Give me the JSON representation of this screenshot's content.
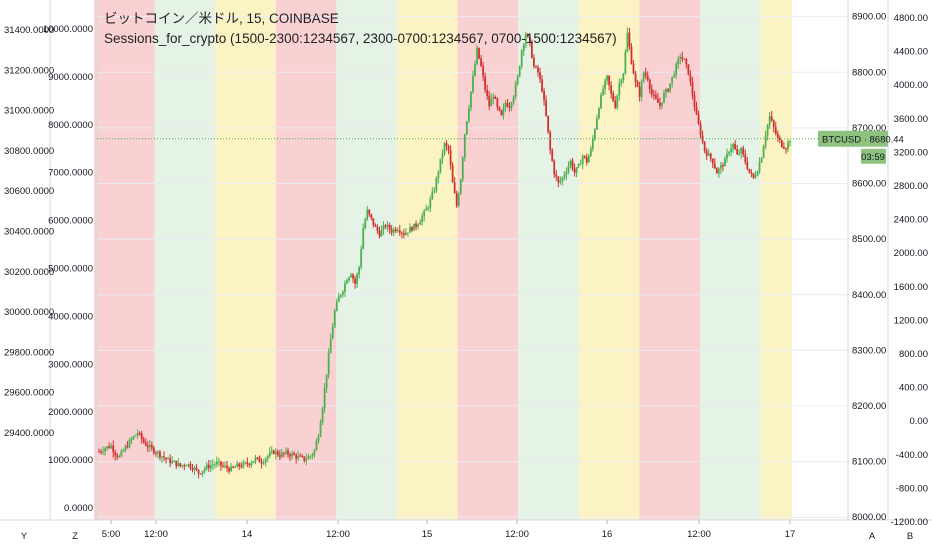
{
  "header": {
    "symbol_line": "ビットコイン／米ドル, 15, COINBASE",
    "indicator_line": "Sessions_for_crypto (1500-2300:1234567, 2300-0700:1234567, 0700-1500:1234567)"
  },
  "colors": {
    "session_red": "#f9d1d3",
    "session_green": "#e5f2e6",
    "session_yellow": "#fbf3c4",
    "candle_up": "#4caf50",
    "candle_down": "#d32f2f",
    "price_line": "#4caf50",
    "price_label_bg": "#8fc27f"
  },
  "chart_data": {
    "type": "candlestick",
    "symbol": "BTCUSD",
    "interval": "15",
    "exchange": "COINBASE",
    "last_price": "8680.44",
    "countdown": "03:59",
    "sessions": [
      "1500-2300:1234567",
      "2300-0700:1234567",
      "0700-1500:1234567"
    ],
    "session_band_colors": [
      "red",
      "green",
      "yellow",
      "red",
      "green",
      "yellow",
      "red",
      "green",
      "yellow",
      "red",
      "green",
      "yellow",
      "red",
      "green",
      "yellow",
      "red",
      "green",
      "yellow"
    ],
    "price_axis_right": {
      "range": [
        7995,
        8930
      ],
      "ticks": [
        "8900.00",
        "8800.00",
        "8700.00",
        "8600.00",
        "8500.00",
        "8400.00",
        "8300.00",
        "8200.00",
        "8100.00",
        "8000.00"
      ]
    },
    "axis_left_outer": {
      "range": [
        29280,
        31420
      ],
      "ticks": [
        "31400.0000",
        "31200.0000",
        "31000.0000",
        "30800.0000",
        "30600.0000",
        "30400.0000",
        "30200.0000",
        "30000.0000",
        "29800.0000",
        "29600.0000",
        "29400.0000"
      ]
    },
    "axis_left_inner": {
      "ticks": [
        "10000.0000",
        "9000.0000",
        "8000.0000",
        "7000.0000",
        "6000.0000",
        "5000.0000",
        "4000.0000",
        "3000.0000",
        "2000.0000",
        "1000.0000",
        "0.0000"
      ]
    },
    "axis_right_outer": {
      "ticks": [
        "4800.00",
        "4400.00",
        "4000.00",
        "3600.00",
        "3200.00",
        "2800.00",
        "2400.00",
        "2000.00",
        "1600.00",
        "1200.00",
        "800.00",
        "400.00",
        "0.00",
        "-400.00",
        "-800.00",
        "-1200.00"
      ]
    },
    "time_axis": {
      "ticks": [
        "5:00",
        "12:00",
        "14",
        "12:00",
        "15",
        "12:00",
        "16",
        "12:00",
        "17"
      ]
    },
    "price_path": [
      [
        0,
        8118
      ],
      [
        3,
        8125
      ],
      [
        6,
        8128
      ],
      [
        8,
        8115
      ],
      [
        10,
        8108
      ],
      [
        13,
        8125
      ],
      [
        16,
        8140
      ],
      [
        19,
        8152
      ],
      [
        22,
        8135
      ],
      [
        25,
        8125
      ],
      [
        28,
        8118
      ],
      [
        31,
        8110
      ],
      [
        34,
        8102
      ],
      [
        37,
        8098
      ],
      [
        40,
        8092
      ],
      [
        43,
        8097
      ],
      [
        46,
        8090
      ],
      [
        49,
        8080
      ],
      [
        52,
        8088
      ],
      [
        55,
        8094
      ],
      [
        58,
        8097
      ],
      [
        62,
        8090
      ],
      [
        65,
        8086
      ],
      [
        68,
        8092
      ],
      [
        71,
        8094
      ],
      [
        74,
        8098
      ],
      [
        77,
        8105
      ],
      [
        80,
        8100
      ],
      [
        83,
        8110
      ],
      [
        86,
        8118
      ],
      [
        89,
        8112
      ],
      [
        92,
        8115
      ],
      [
        95,
        8112
      ],
      [
        98,
        8108
      ],
      [
        101,
        8104
      ],
      [
        104,
        8110
      ],
      [
        106,
        8120
      ],
      [
        108,
        8150
      ],
      [
        110,
        8200
      ],
      [
        112,
        8260
      ],
      [
        114,
        8320
      ],
      [
        116,
        8370
      ],
      [
        118,
        8395
      ],
      [
        120,
        8410
      ],
      [
        122,
        8430
      ],
      [
        124,
        8440
      ],
      [
        126,
        8420
      ],
      [
        128,
        8450
      ],
      [
        130,
        8520
      ],
      [
        132,
        8550
      ],
      [
        134,
        8535
      ],
      [
        136,
        8520
      ],
      [
        138,
        8510
      ],
      [
        141,
        8525
      ],
      [
        144,
        8515
      ],
      [
        147,
        8520
      ],
      [
        150,
        8510
      ],
      [
        153,
        8518
      ],
      [
        156,
        8525
      ],
      [
        159,
        8540
      ],
      [
        162,
        8560
      ],
      [
        165,
        8590
      ],
      [
        168,
        8640
      ],
      [
        170,
        8670
      ],
      [
        172,
        8660
      ],
      [
        174,
        8600
      ],
      [
        176,
        8560
      ],
      [
        178,
        8610
      ],
      [
        180,
        8690
      ],
      [
        182,
        8740
      ],
      [
        184,
        8790
      ],
      [
        186,
        8840
      ],
      [
        188,
        8810
      ],
      [
        190,
        8770
      ],
      [
        192,
        8740
      ],
      [
        194,
        8760
      ],
      [
        196,
        8735
      ],
      [
        198,
        8720
      ],
      [
        200,
        8745
      ],
      [
        202,
        8740
      ],
      [
        204,
        8760
      ],
      [
        206,
        8790
      ],
      [
        208,
        8840
      ],
      [
        210,
        8870
      ],
      [
        212,
        8850
      ],
      [
        214,
        8810
      ],
      [
        216,
        8800
      ],
      [
        218,
        8770
      ],
      [
        220,
        8720
      ],
      [
        222,
        8660
      ],
      [
        224,
        8620
      ],
      [
        226,
        8600
      ],
      [
        228,
        8610
      ],
      [
        230,
        8625
      ],
      [
        232,
        8640
      ],
      [
        234,
        8620
      ],
      [
        236,
        8630
      ],
      [
        238,
        8650
      ],
      [
        240,
        8640
      ],
      [
        242,
        8660
      ],
      [
        244,
        8700
      ],
      [
        246,
        8740
      ],
      [
        248,
        8770
      ],
      [
        250,
        8790
      ],
      [
        252,
        8760
      ],
      [
        254,
        8740
      ],
      [
        256,
        8780
      ],
      [
        258,
        8800
      ],
      [
        260,
        8870
      ],
      [
        262,
        8820
      ],
      [
        264,
        8780
      ],
      [
        266,
        8760
      ],
      [
        268,
        8800
      ],
      [
        270,
        8790
      ],
      [
        272,
        8760
      ],
      [
        274,
        8750
      ],
      [
        276,
        8740
      ],
      [
        278,
        8760
      ],
      [
        280,
        8770
      ],
      [
        282,
        8790
      ],
      [
        284,
        8810
      ],
      [
        286,
        8830
      ],
      [
        288,
        8820
      ],
      [
        290,
        8800
      ],
      [
        292,
        8760
      ],
      [
        294,
        8720
      ],
      [
        296,
        8690
      ],
      [
        298,
        8660
      ],
      [
        300,
        8650
      ],
      [
        302,
        8640
      ],
      [
        304,
        8620
      ],
      [
        306,
        8630
      ],
      [
        308,
        8640
      ],
      [
        310,
        8660
      ],
      [
        312,
        8670
      ],
      [
        314,
        8650
      ],
      [
        316,
        8660
      ],
      [
        318,
        8640
      ],
      [
        320,
        8620
      ],
      [
        322,
        8610
      ],
      [
        324,
        8625
      ],
      [
        326,
        8650
      ],
      [
        328,
        8690
      ],
      [
        330,
        8720
      ],
      [
        332,
        8700
      ],
      [
        334,
        8680
      ],
      [
        336,
        8670
      ],
      [
        338,
        8665
      ],
      [
        340,
        8680
      ]
    ]
  },
  "toolbar_bottom": {
    "left_y": "Y",
    "left_z": "Z",
    "right_a": "A",
    "right_b": "B"
  },
  "labels": {
    "price_tag_symbol": "BTCUSD",
    "price_tag_value": "8680.44",
    "price_tag_countdown": "03:59"
  }
}
